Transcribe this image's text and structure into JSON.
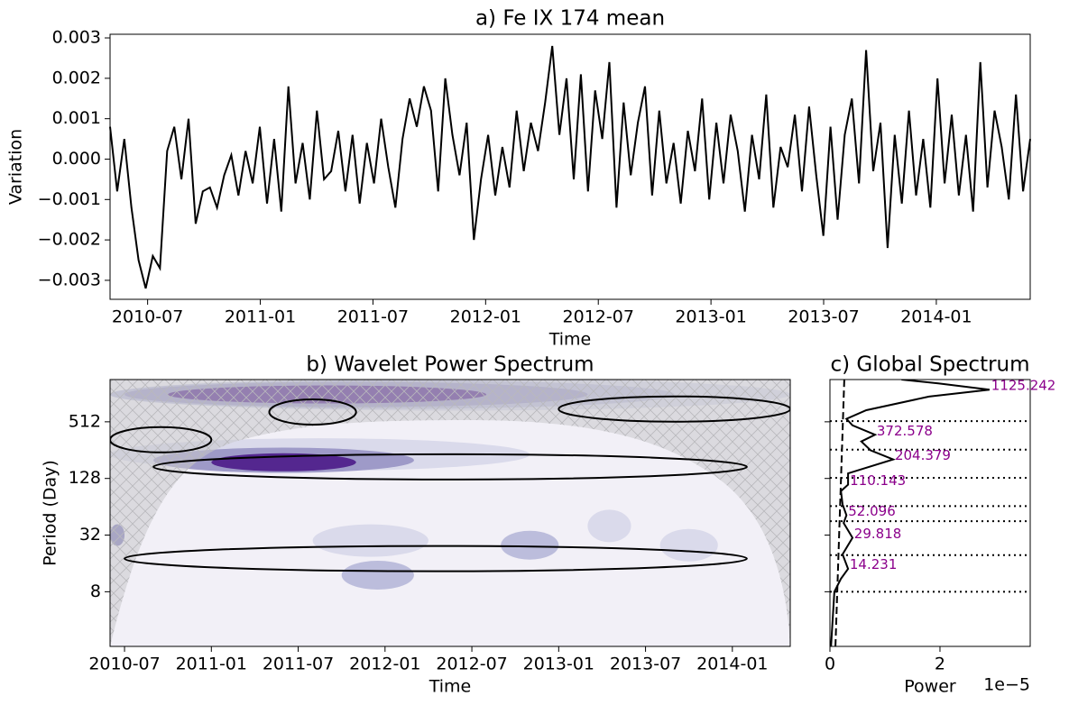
{
  "chart_data": [
    {
      "type": "line",
      "title": "a) Fe IX 174 mean",
      "x_label": "Time",
      "y_label": "Variation",
      "color": "#000000",
      "xlim": [
        "2010-05",
        "2014-06"
      ],
      "xticks": [
        "2010-07",
        "2011-01",
        "2011-07",
        "2012-01",
        "2012-07",
        "2013-01",
        "2013-07",
        "2014-01"
      ],
      "ylim": [
        -0.00347,
        0.00309
      ],
      "yticks": [
        {
          "value": -0.003,
          "label": "−0.003"
        },
        {
          "value": -0.002,
          "label": "−0.002"
        },
        {
          "value": -0.001,
          "label": "−0.001"
        },
        {
          "value": 0,
          "label": "0.000"
        },
        0.001,
        0.002,
        0.003
      ],
      "values": [
        0.0008,
        -0.0008,
        0.0005,
        -0.0012,
        -0.0025,
        -0.0032,
        -0.0024,
        -0.0027,
        0.0002,
        0.0008,
        -0.0005,
        0.001,
        -0.0016,
        -0.0008,
        -0.0007,
        -0.0012,
        -0.0004,
        0.0001,
        -0.0009,
        0.0002,
        -0.0006,
        0.0008,
        -0.0011,
        0.0005,
        -0.0013,
        0.0018,
        -0.0006,
        0.0004,
        -0.001,
        0.0012,
        -0.0005,
        -0.0003,
        0.0007,
        -0.0008,
        0.0006,
        -0.0011,
        0.0004,
        -0.0006,
        0.001,
        -0.0002,
        -0.0012,
        0.0005,
        0.0015,
        0.0008,
        0.0018,
        0.0012,
        -0.0008,
        0.002,
        0.0006,
        -0.0004,
        0.0009,
        -0.002,
        -0.0005,
        0.0006,
        -0.0009,
        0.0003,
        -0.0007,
        0.0012,
        -0.0003,
        0.0009,
        0.0002,
        0.0014,
        0.0028,
        0.0006,
        0.002,
        -0.0005,
        0.0021,
        -0.0008,
        0.0017,
        0.0005,
        0.0024,
        -0.0012,
        0.0014,
        -0.0004,
        0.0009,
        0.0018,
        -0.0009,
        0.0012,
        -0.0006,
        0.0004,
        -0.0011,
        0.0007,
        -0.0003,
        0.0015,
        -0.001,
        0.0009,
        -0.0006,
        0.0011,
        0.0002,
        -0.0013,
        0.0006,
        -0.0005,
        0.0016,
        -0.0012,
        0.0003,
        -0.0002,
        0.0011,
        -0.0008,
        0.0013,
        -0.0004,
        -0.0019,
        0.0008,
        -0.0015,
        0.0006,
        0.0015,
        -0.0006,
        0.0027,
        -0.0003,
        0.0009,
        -0.0022,
        0.0006,
        -0.0011,
        0.0012,
        -0.0009,
        0.0005,
        -0.0012,
        0.002,
        -0.0006,
        0.0011,
        -0.0009,
        0.0006,
        -0.0013,
        0.0024,
        -0.0007,
        0.0012,
        0.0003,
        -0.001,
        0.0016,
        -0.0008,
        0.0005
      ]
    },
    {
      "type": "wavelet",
      "title": "b) Wavelet Power Spectrum",
      "x_label": "Time",
      "y_label": "Period (Day)",
      "xlim": [
        "2010-06",
        "2014-05"
      ],
      "xticks": [
        "2010-07",
        "2011-01",
        "2011-07",
        "2012-01",
        "2012-07",
        "2013-01",
        "2013-07",
        "2014-01"
      ],
      "ylim": [
        2.1,
        1440
      ],
      "yticks": [
        8,
        32,
        128,
        512
      ],
      "log_base": 2,
      "background": "#f2f0f7",
      "level_colors": [
        "#dadaeb",
        "#bcbddc",
        "#9e9ac8",
        "#807dba",
        "#54278f"
      ],
      "blobs": [
        {
          "x": [
            "2010-06",
            "2014-05"
          ],
          "period": 1000,
          "level": 0
        },
        {
          "x": [
            "2010-06",
            "2013-09"
          ],
          "period": 1000,
          "level": 1
        },
        {
          "x": [
            "2010-07",
            "2013-03"
          ],
          "period": 1000,
          "level": 2
        },
        {
          "x": [
            "2010-10",
            "2012-08"
          ],
          "period": 1000,
          "level": 4
        },
        {
          "x": [
            "2010-06",
            "2012-11"
          ],
          "period": 230,
          "level": 0
        },
        {
          "x": [
            "2010-09",
            "2012-03"
          ],
          "period": 200,
          "level": 2
        },
        {
          "x": [
            "2011-01",
            "2011-11"
          ],
          "period": 190,
          "level": 4
        },
        {
          "x": [
            "2010-06",
            "2010-07"
          ],
          "period": 32,
          "level": 3
        },
        {
          "x": [
            "2011-08",
            "2012-04"
          ],
          "period": 28,
          "level": 0
        },
        {
          "x": [
            "2011-10",
            "2012-03"
          ],
          "period": 12,
          "level": 1
        },
        {
          "x": [
            "2012-09",
            "2013-01"
          ],
          "period": 25,
          "level": 1
        },
        {
          "x": [
            "2013-03",
            "2013-06"
          ],
          "period": 40,
          "level": 0
        },
        {
          "x": [
            "2013-08",
            "2013-12"
          ],
          "period": 25,
          "level": 0
        }
      ],
      "contours": [
        {
          "x": [
            "2011-05",
            "2011-11"
          ],
          "period": 650
        },
        {
          "x": [
            "2013-01",
            "2014-05"
          ],
          "period": 700
        },
        {
          "x": [
            "2010-06",
            "2011-01"
          ],
          "period": 330
        },
        {
          "x": [
            "2010-09",
            "2014-02"
          ],
          "period": 170
        },
        {
          "x": [
            "2010-07",
            "2014-02"
          ],
          "period": 18
        }
      ]
    },
    {
      "type": "spectrum",
      "title": "c) Global Spectrum",
      "x_label": "Power",
      "x_offset_label": "1e−5",
      "xlim": [
        0,
        3.64
      ],
      "xticks": [
        0,
        2
      ],
      "ylim": [
        2.1,
        1440
      ],
      "yticks": [
        8,
        32,
        128,
        512
      ],
      "log_base": 2,
      "series": [
        {
          "color": "#000000",
          "style": "solid",
          "y": [
            2.1,
            8,
            11,
            14,
            20,
            30,
            43,
            52,
            68,
            94,
            110,
            145,
            204,
            255,
            316,
            373,
            470,
            550,
            680,
            950,
            1125,
            1310,
            1440
          ],
          "values": [
            0.02,
            0.08,
            0.2,
            0.33,
            0.23,
            0.41,
            0.25,
            0.3,
            0.23,
            0.2,
            0.33,
            0.33,
            1.15,
            0.74,
            0.57,
            0.82,
            0.41,
            0.3,
            0.66,
            1.8,
            2.9,
            1.97,
            1.3
          ]
        },
        {
          "color": "#000000",
          "style": "dashed",
          "y": [
            2.1,
            1440
          ],
          "values": [
            0.1,
            0.26
          ]
        }
      ],
      "hlines": [
        8,
        19.6,
        45,
        65,
        130,
        259,
        520
      ],
      "annotation_color": "#8b008b",
      "annotations": [
        1125.242,
        372.578,
        204.379,
        110.143,
        52.096,
        29.818,
        14.231
      ]
    }
  ]
}
